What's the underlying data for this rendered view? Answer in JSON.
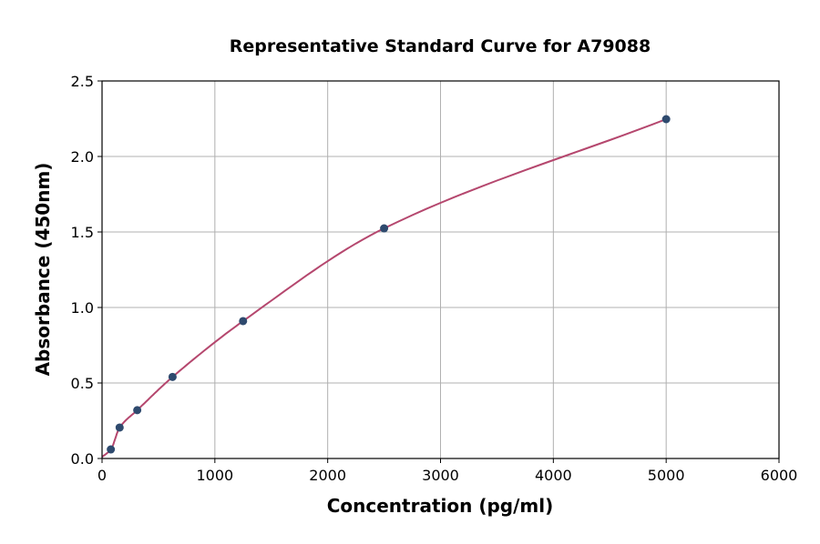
{
  "chart_data": {
    "type": "scatter",
    "title": "Representative Standard Curve for A79088",
    "xlabel": "Concentration (pg/ml)",
    "ylabel": "Absorbance (450nm)",
    "xlim": [
      0,
      6000
    ],
    "ylim": [
      0,
      2.5
    ],
    "xticks": [
      "0",
      "1000",
      "2000",
      "3000",
      "4000",
      "5000",
      "6000"
    ],
    "yticks": [
      "0.0",
      "0.5",
      "1.0",
      "1.5",
      "2.0",
      "2.5"
    ],
    "grid": true,
    "x": [
      78,
      156,
      312,
      625,
      1250,
      2500,
      5000
    ],
    "y": [
      0.06,
      0.205,
      0.32,
      0.54,
      0.91,
      1.524,
      2.247
    ],
    "fit_curve": true,
    "colors": {
      "points": "#2e4a6e",
      "curve": "#b5476e",
      "grid": "#b0b0b0"
    }
  }
}
